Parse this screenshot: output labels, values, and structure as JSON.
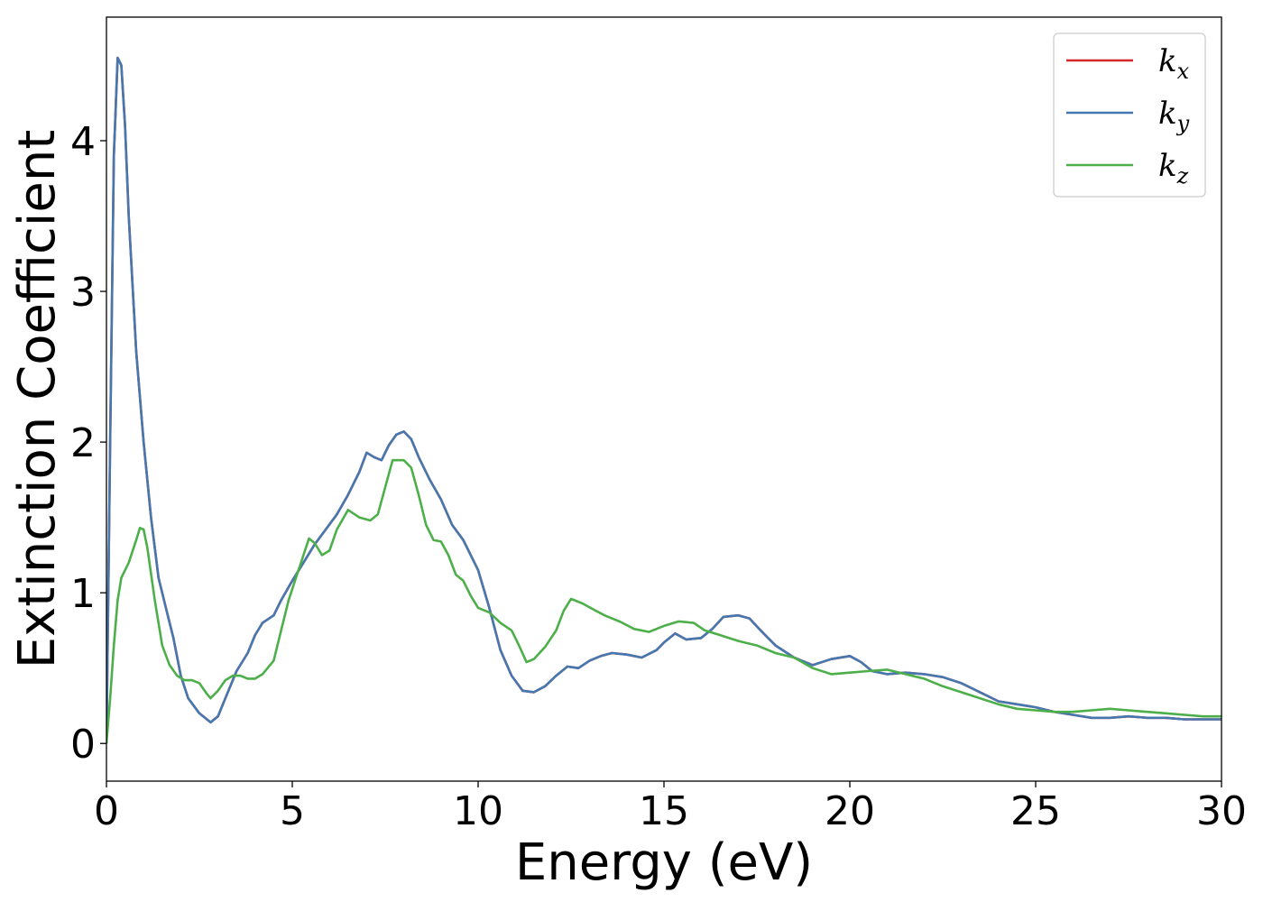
{
  "chart_data": {
    "type": "line",
    "xlabel": "Energy (eV)",
    "ylabel": "Extinction Coefficient",
    "xlim": [
      0,
      30
    ],
    "ylim": [
      -0.25,
      4.82
    ],
    "xticks": [
      0,
      5,
      10,
      15,
      20,
      25,
      30
    ],
    "yticks": [
      0,
      1,
      2,
      3,
      4
    ],
    "grid": false,
    "legend_position": "top-right",
    "series": [
      {
        "name": "k",
        "subscript": "x",
        "color": "#d62728",
        "points": [
          [
            0,
            0
          ],
          [
            0.1,
            2.0
          ],
          [
            0.2,
            3.9
          ],
          [
            0.3,
            4.55
          ],
          [
            0.4,
            4.5
          ],
          [
            0.5,
            4.1
          ],
          [
            0.6,
            3.5
          ],
          [
            0.8,
            2.6
          ],
          [
            1.0,
            2.0
          ],
          [
            1.2,
            1.5
          ],
          [
            1.4,
            1.1
          ],
          [
            1.6,
            0.9
          ],
          [
            1.8,
            0.7
          ],
          [
            2.0,
            0.45
          ],
          [
            2.2,
            0.3
          ],
          [
            2.5,
            0.2
          ],
          [
            2.8,
            0.14
          ],
          [
            3.0,
            0.18
          ],
          [
            3.2,
            0.3
          ],
          [
            3.5,
            0.48
          ],
          [
            3.8,
            0.6
          ],
          [
            4.0,
            0.72
          ],
          [
            4.2,
            0.8
          ],
          [
            4.5,
            0.85
          ],
          [
            4.7,
            0.95
          ],
          [
            5.0,
            1.08
          ],
          [
            5.3,
            1.2
          ],
          [
            5.6,
            1.32
          ],
          [
            5.9,
            1.42
          ],
          [
            6.2,
            1.52
          ],
          [
            6.5,
            1.65
          ],
          [
            6.8,
            1.8
          ],
          [
            7.0,
            1.93
          ],
          [
            7.2,
            1.9
          ],
          [
            7.4,
            1.88
          ],
          [
            7.6,
            1.98
          ],
          [
            7.8,
            2.05
          ],
          [
            8.0,
            2.07
          ],
          [
            8.2,
            2.02
          ],
          [
            8.4,
            1.9
          ],
          [
            8.7,
            1.75
          ],
          [
            9.0,
            1.62
          ],
          [
            9.3,
            1.45
          ],
          [
            9.6,
            1.35
          ],
          [
            10.0,
            1.15
          ],
          [
            10.3,
            0.9
          ],
          [
            10.6,
            0.62
          ],
          [
            10.9,
            0.45
          ],
          [
            11.2,
            0.35
          ],
          [
            11.5,
            0.34
          ],
          [
            11.8,
            0.38
          ],
          [
            12.1,
            0.45
          ],
          [
            12.4,
            0.51
          ],
          [
            12.7,
            0.5
          ],
          [
            13.0,
            0.55
          ],
          [
            13.3,
            0.58
          ],
          [
            13.6,
            0.6
          ],
          [
            14.0,
            0.59
          ],
          [
            14.4,
            0.57
          ],
          [
            14.8,
            0.62
          ],
          [
            15.0,
            0.67
          ],
          [
            15.3,
            0.73
          ],
          [
            15.6,
            0.69
          ],
          [
            16.0,
            0.7
          ],
          [
            16.3,
            0.76
          ],
          [
            16.6,
            0.84
          ],
          [
            17.0,
            0.85
          ],
          [
            17.3,
            0.83
          ],
          [
            17.6,
            0.75
          ],
          [
            18.0,
            0.65
          ],
          [
            18.5,
            0.57
          ],
          [
            19.0,
            0.52
          ],
          [
            19.5,
            0.56
          ],
          [
            20.0,
            0.58
          ],
          [
            20.3,
            0.54
          ],
          [
            20.6,
            0.48
          ],
          [
            21.0,
            0.46
          ],
          [
            21.5,
            0.47
          ],
          [
            22.0,
            0.46
          ],
          [
            22.5,
            0.44
          ],
          [
            23.0,
            0.4
          ],
          [
            23.5,
            0.34
          ],
          [
            24.0,
            0.28
          ],
          [
            24.5,
            0.26
          ],
          [
            25.0,
            0.24
          ],
          [
            25.5,
            0.21
          ],
          [
            26.0,
            0.19
          ],
          [
            26.5,
            0.17
          ],
          [
            27.0,
            0.17
          ],
          [
            27.5,
            0.18
          ],
          [
            28.0,
            0.17
          ],
          [
            28.5,
            0.17
          ],
          [
            29.0,
            0.16
          ],
          [
            29.5,
            0.16
          ],
          [
            30.0,
            0.16
          ]
        ]
      },
      {
        "name": "k",
        "subscript": "y",
        "color": "#4678b0",
        "points": [
          [
            0,
            0
          ],
          [
            0.1,
            2.0
          ],
          [
            0.2,
            3.9
          ],
          [
            0.3,
            4.55
          ],
          [
            0.4,
            4.5
          ],
          [
            0.5,
            4.1
          ],
          [
            0.6,
            3.5
          ],
          [
            0.8,
            2.6
          ],
          [
            1.0,
            2.0
          ],
          [
            1.2,
            1.5
          ],
          [
            1.4,
            1.1
          ],
          [
            1.6,
            0.9
          ],
          [
            1.8,
            0.7
          ],
          [
            2.0,
            0.45
          ],
          [
            2.2,
            0.3
          ],
          [
            2.5,
            0.2
          ],
          [
            2.8,
            0.14
          ],
          [
            3.0,
            0.18
          ],
          [
            3.2,
            0.3
          ],
          [
            3.5,
            0.48
          ],
          [
            3.8,
            0.6
          ],
          [
            4.0,
            0.72
          ],
          [
            4.2,
            0.8
          ],
          [
            4.5,
            0.85
          ],
          [
            4.7,
            0.95
          ],
          [
            5.0,
            1.08
          ],
          [
            5.3,
            1.2
          ],
          [
            5.6,
            1.32
          ],
          [
            5.9,
            1.42
          ],
          [
            6.2,
            1.52
          ],
          [
            6.5,
            1.65
          ],
          [
            6.8,
            1.8
          ],
          [
            7.0,
            1.93
          ],
          [
            7.2,
            1.9
          ],
          [
            7.4,
            1.88
          ],
          [
            7.6,
            1.98
          ],
          [
            7.8,
            2.05
          ],
          [
            8.0,
            2.07
          ],
          [
            8.2,
            2.02
          ],
          [
            8.4,
            1.9
          ],
          [
            8.7,
            1.75
          ],
          [
            9.0,
            1.62
          ],
          [
            9.3,
            1.45
          ],
          [
            9.6,
            1.35
          ],
          [
            10.0,
            1.15
          ],
          [
            10.3,
            0.9
          ],
          [
            10.6,
            0.62
          ],
          [
            10.9,
            0.45
          ],
          [
            11.2,
            0.35
          ],
          [
            11.5,
            0.34
          ],
          [
            11.8,
            0.38
          ],
          [
            12.1,
            0.45
          ],
          [
            12.4,
            0.51
          ],
          [
            12.7,
            0.5
          ],
          [
            13.0,
            0.55
          ],
          [
            13.3,
            0.58
          ],
          [
            13.6,
            0.6
          ],
          [
            14.0,
            0.59
          ],
          [
            14.4,
            0.57
          ],
          [
            14.8,
            0.62
          ],
          [
            15.0,
            0.67
          ],
          [
            15.3,
            0.73
          ],
          [
            15.6,
            0.69
          ],
          [
            16.0,
            0.7
          ],
          [
            16.3,
            0.76
          ],
          [
            16.6,
            0.84
          ],
          [
            17.0,
            0.85
          ],
          [
            17.3,
            0.83
          ],
          [
            17.6,
            0.75
          ],
          [
            18.0,
            0.65
          ],
          [
            18.5,
            0.57
          ],
          [
            19.0,
            0.52
          ],
          [
            19.5,
            0.56
          ],
          [
            20.0,
            0.58
          ],
          [
            20.3,
            0.54
          ],
          [
            20.6,
            0.48
          ],
          [
            21.0,
            0.46
          ],
          [
            21.5,
            0.47
          ],
          [
            22.0,
            0.46
          ],
          [
            22.5,
            0.44
          ],
          [
            23.0,
            0.4
          ],
          [
            23.5,
            0.34
          ],
          [
            24.0,
            0.28
          ],
          [
            24.5,
            0.26
          ],
          [
            25.0,
            0.24
          ],
          [
            25.5,
            0.21
          ],
          [
            26.0,
            0.19
          ],
          [
            26.5,
            0.17
          ],
          [
            27.0,
            0.17
          ],
          [
            27.5,
            0.18
          ],
          [
            28.0,
            0.17
          ],
          [
            28.5,
            0.17
          ],
          [
            29.0,
            0.16
          ],
          [
            29.5,
            0.16
          ],
          [
            30.0,
            0.16
          ]
        ]
      },
      {
        "name": "k",
        "subscript": "z",
        "color": "#4daf4a",
        "points": [
          [
            0,
            0
          ],
          [
            0.1,
            0.3
          ],
          [
            0.2,
            0.65
          ],
          [
            0.3,
            0.95
          ],
          [
            0.4,
            1.1
          ],
          [
            0.6,
            1.2
          ],
          [
            0.8,
            1.35
          ],
          [
            0.9,
            1.43
          ],
          [
            1.0,
            1.42
          ],
          [
            1.1,
            1.3
          ],
          [
            1.3,
            0.95
          ],
          [
            1.5,
            0.65
          ],
          [
            1.7,
            0.52
          ],
          [
            1.9,
            0.45
          ],
          [
            2.1,
            0.42
          ],
          [
            2.3,
            0.42
          ],
          [
            2.5,
            0.4
          ],
          [
            2.7,
            0.33
          ],
          [
            2.8,
            0.3
          ],
          [
            3.0,
            0.35
          ],
          [
            3.2,
            0.42
          ],
          [
            3.4,
            0.45
          ],
          [
            3.6,
            0.45
          ],
          [
            3.8,
            0.43
          ],
          [
            4.0,
            0.43
          ],
          [
            4.2,
            0.46
          ],
          [
            4.5,
            0.55
          ],
          [
            4.7,
            0.75
          ],
          [
            4.9,
            0.95
          ],
          [
            5.1,
            1.1
          ],
          [
            5.3,
            1.25
          ],
          [
            5.45,
            1.36
          ],
          [
            5.6,
            1.33
          ],
          [
            5.8,
            1.25
          ],
          [
            6.0,
            1.28
          ],
          [
            6.2,
            1.42
          ],
          [
            6.5,
            1.55
          ],
          [
            6.8,
            1.5
          ],
          [
            7.1,
            1.48
          ],
          [
            7.3,
            1.52
          ],
          [
            7.5,
            1.7
          ],
          [
            7.7,
            1.88
          ],
          [
            8.0,
            1.88
          ],
          [
            8.2,
            1.83
          ],
          [
            8.4,
            1.65
          ],
          [
            8.6,
            1.45
          ],
          [
            8.8,
            1.35
          ],
          [
            9.0,
            1.34
          ],
          [
            9.2,
            1.25
          ],
          [
            9.4,
            1.12
          ],
          [
            9.6,
            1.08
          ],
          [
            9.8,
            0.98
          ],
          [
            10.0,
            0.9
          ],
          [
            10.3,
            0.87
          ],
          [
            10.6,
            0.8
          ],
          [
            10.9,
            0.75
          ],
          [
            11.1,
            0.65
          ],
          [
            11.3,
            0.54
          ],
          [
            11.5,
            0.56
          ],
          [
            11.8,
            0.64
          ],
          [
            12.1,
            0.75
          ],
          [
            12.3,
            0.88
          ],
          [
            12.5,
            0.96
          ],
          [
            12.8,
            0.93
          ],
          [
            13.1,
            0.89
          ],
          [
            13.4,
            0.85
          ],
          [
            13.8,
            0.81
          ],
          [
            14.2,
            0.76
          ],
          [
            14.6,
            0.74
          ],
          [
            15.0,
            0.78
          ],
          [
            15.4,
            0.81
          ],
          [
            15.8,
            0.8
          ],
          [
            16.1,
            0.75
          ],
          [
            16.5,
            0.72
          ],
          [
            17.0,
            0.68
          ],
          [
            17.5,
            0.65
          ],
          [
            18.0,
            0.6
          ],
          [
            18.5,
            0.57
          ],
          [
            19.0,
            0.5
          ],
          [
            19.5,
            0.46
          ],
          [
            20.0,
            0.47
          ],
          [
            20.5,
            0.48
          ],
          [
            21.0,
            0.49
          ],
          [
            21.5,
            0.46
          ],
          [
            22.0,
            0.43
          ],
          [
            22.5,
            0.38
          ],
          [
            23.0,
            0.34
          ],
          [
            23.5,
            0.3
          ],
          [
            24.0,
            0.26
          ],
          [
            24.5,
            0.23
          ],
          [
            25.0,
            0.22
          ],
          [
            25.5,
            0.21
          ],
          [
            26.0,
            0.21
          ],
          [
            26.5,
            0.22
          ],
          [
            27.0,
            0.23
          ],
          [
            27.5,
            0.22
          ],
          [
            28.0,
            0.21
          ],
          [
            28.5,
            0.2
          ],
          [
            29.0,
            0.19
          ],
          [
            29.5,
            0.18
          ],
          [
            30.0,
            0.18
          ]
        ]
      }
    ]
  }
}
